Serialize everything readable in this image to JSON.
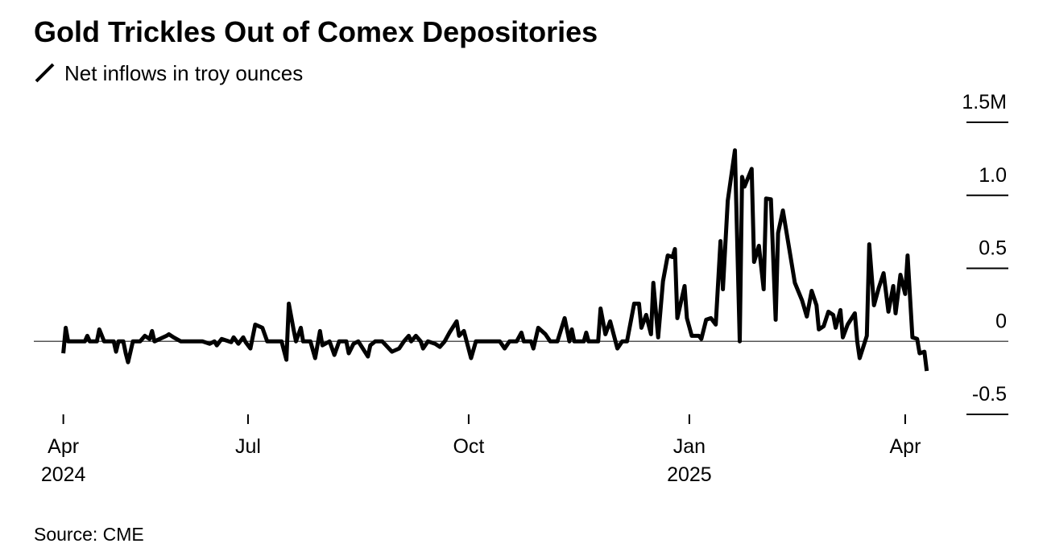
{
  "chart_data": {
    "type": "line",
    "title": "Gold Trickles Out of Comex Depositories",
    "source": "Source: CME",
    "series": [
      {
        "name": "Net inflows in troy ounces",
        "color": "#000000",
        "x": [
          14,
          15,
          16,
          23,
          24,
          25,
          28,
          29,
          31,
          35,
          36,
          37,
          39,
          40,
          41,
          43,
          46,
          48,
          50,
          51,
          52,
          57,
          58,
          60,
          63,
          67,
          72,
          75,
          77,
          78,
          80,
          84,
          85,
          87,
          89,
          90,
          92,
          94,
          97,
          99,
          105,
          107,
          108,
          110,
          111,
          113,
          114,
          117,
          119,
          121,
          122,
          125,
          127,
          129,
          132,
          133,
          135,
          137,
          141,
          142,
          144,
          147,
          151,
          154,
          156,
          158,
          159,
          161,
          163,
          164,
          166,
          169,
          171,
          173,
          175,
          178,
          179,
          181,
          184,
          186,
          196,
          198,
          200,
          203,
          205,
          206,
          209,
          210,
          212,
          215,
          217,
          220,
          223,
          225,
          226,
          227,
          231,
          232,
          233,
          237,
          238,
          240,
          242,
          245,
          247,
          249,
          252,
          254,
          255,
          257,
          259,
          260,
          262,
          264,
          266,
          268,
          269,
          270,
          273,
          274,
          276,
          279,
          280,
          282,
          284,
          286,
          288,
          289,
          291,
          294,
          296,
          297,
          298,
          301,
          302,
          304,
          306,
          307,
          309,
          311,
          312,
          314,
          317,
          319,
          322,
          324,
          326,
          328,
          329,
          331,
          333,
          335,
          336,
          338,
          339,
          341,
          344,
          345,
          346,
          349,
          350,
          352,
          354,
          356,
          358,
          360,
          361,
          363,
          365,
          366,
          368,
          370,
          371,
          373,
          374
        ],
        "values": [
          -82000,
          93000,
          0,
          0,
          38000,
          0,
          0,
          82000,
          0,
          0,
          -71000,
          0,
          0,
          -82000,
          -143000,
          0,
          0,
          38000,
          16000,
          71000,
          0,
          38000,
          49000,
          27000,
          0,
          0,
          0,
          -16000,
          0,
          -27000,
          16000,
          -5000,
          27000,
          -16000,
          27000,
          -5000,
          -49000,
          115000,
          93000,
          0,
          0,
          -126000,
          258000,
          82000,
          0,
          93000,
          0,
          0,
          -115000,
          71000,
          -27000,
          0,
          -93000,
          0,
          0,
          -82000,
          -16000,
          0,
          -104000,
          -27000,
          0,
          0,
          -71000,
          -49000,
          0,
          38000,
          0,
          38000,
          0,
          -49000,
          0,
          -16000,
          -38000,
          0,
          60000,
          137000,
          38000,
          71000,
          -115000,
          0,
          0,
          -49000,
          0,
          0,
          60000,
          0,
          0,
          -49000,
          93000,
          49000,
          0,
          0,
          159000,
          0,
          82000,
          0,
          0,
          60000,
          0,
          0,
          225000,
          49000,
          137000,
          -49000,
          0,
          0,
          258000,
          258000,
          93000,
          181000,
          49000,
          401000,
          27000,
          412000,
          588000,
          577000,
          632000,
          159000,
          379000,
          159000,
          38000,
          38000,
          16000,
          148000,
          159000,
          115000,
          687000,
          357000,
          962000,
          1308000,
          0,
          1126000,
          1060000,
          1181000,
          544000,
          654000,
          357000,
          978000,
          973000,
          148000,
          742000,
          896000,
          599000,
          401000,
          280000,
          170000,
          346000,
          247000,
          82000,
          104000,
          203000,
          181000,
          93000,
          214000,
          27000,
          115000,
          192000,
          0,
          -115000,
          38000,
          665000,
          247000,
          368000,
          467000,
          203000,
          379000,
          192000,
          456000,
          324000,
          588000,
          27000,
          16000,
          -82000,
          -71000,
          -203000
        ]
      }
    ],
    "xlim": [
      1.7,
      408
    ],
    "xticks": [
      {
        "value": 14,
        "label": "Apr 2024"
      },
      {
        "value": 91,
        "label": "Jul"
      },
      {
        "value": 183,
        "label": "Oct"
      },
      {
        "value": 275,
        "label": "Jan 2025"
      },
      {
        "value": 365,
        "label": "Apr"
      }
    ],
    "ylim": [
      -500000,
      1500000
    ],
    "yticks": [
      {
        "value": 1500000,
        "label": "1.5M"
      },
      {
        "value": 1000000,
        "label": "1.0"
      },
      {
        "value": 500000,
        "label": "0.5"
      },
      0,
      {
        "value": -500000,
        "label": "-0.5"
      }
    ]
  }
}
